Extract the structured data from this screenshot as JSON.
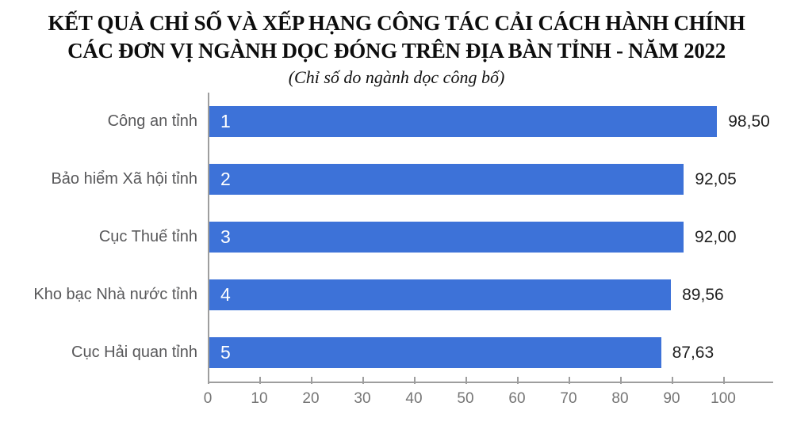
{
  "title": {
    "line1": "KẾT QUẢ CHỈ SỐ VÀ XẾP HẠNG CÔNG TÁC CẢI CÁCH HÀNH CHÍNH",
    "line2": "CÁC ĐƠN VỊ NGÀNH DỌC ĐÓNG TRÊN ĐỊA BÀN TỈNH - NĂM 2022",
    "subtitle": "(Chỉ số do ngành dọc công bố)"
  },
  "colors": {
    "bar": "#3d72d8",
    "category_label": "#58585a",
    "value_label": "#1f1f1f",
    "axis": "#9e9e9e",
    "tick_label": "#757575"
  },
  "chart_data": {
    "type": "bar",
    "orientation": "horizontal",
    "title": "KẾT QUẢ CHỈ SỐ VÀ XẾP HẠNG CÔNG TÁC CẢI CÁCH HÀNH CHÍNH CÁC ĐƠN VỊ NGÀNH DỌC ĐÓNG TRÊN ĐỊA BÀN TỈNH - NĂM 2022",
    "subtitle": "(Chỉ số do ngành dọc công bố)",
    "categories": [
      "Công an tỉnh",
      "Bảo hiểm Xã hội tỉnh",
      "Cục Thuế tỉnh",
      "Kho bạc Nhà nước tỉnh",
      "Cục Hải quan tỉnh"
    ],
    "ranks": [
      "1",
      "2",
      "3",
      "4",
      "5"
    ],
    "values": [
      98.5,
      92.05,
      92.0,
      89.56,
      87.63
    ],
    "value_labels": [
      "98,50",
      "92,05",
      "92,00",
      "89,56",
      "87,63"
    ],
    "xlabel": "",
    "ylabel": "",
    "xlim": [
      0,
      100
    ],
    "x_ticks": [
      0,
      10,
      20,
      30,
      40,
      50,
      60,
      70,
      80,
      90,
      100
    ],
    "grid": false,
    "legend": "none"
  }
}
